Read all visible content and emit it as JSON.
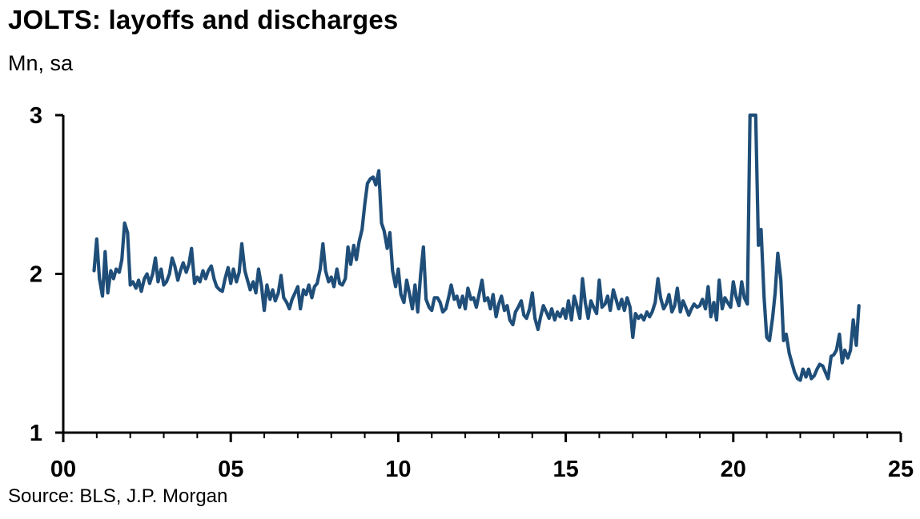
{
  "title": "JOLTS: layoffs and discharges",
  "subtitle": "Mn, sa",
  "source": "Source: BLS, J.P. Morgan",
  "colors": {
    "series": "#1F4E79",
    "axis": "#000000"
  },
  "chart_data": {
    "type": "line",
    "title": "JOLTS: layoffs and discharges",
    "ylabel": "Mn, sa",
    "xlabel": "",
    "xlim": [
      2000,
      2025
    ],
    "ylim": [
      1,
      3
    ],
    "x_ticks": [
      {
        "value": 2000,
        "label": "00"
      },
      {
        "value": 2005,
        "label": "05"
      },
      {
        "value": 2010,
        "label": "10"
      },
      {
        "value": 2015,
        "label": "15"
      },
      {
        "value": 2020,
        "label": "20"
      },
      {
        "value": 2025,
        "label": "25"
      }
    ],
    "y_ticks": [
      {
        "value": 1,
        "label": "1"
      },
      {
        "value": 2,
        "label": "2"
      },
      {
        "value": 3,
        "label": "3"
      }
    ],
    "grid": false,
    "legend": "none",
    "series": [
      {
        "values": [
          [
            2000.92,
            2.02
          ],
          [
            2001.0,
            2.22
          ],
          [
            2001.08,
            1.97
          ],
          [
            2001.17,
            1.86
          ],
          [
            2001.25,
            2.14
          ],
          [
            2001.33,
            1.88
          ],
          [
            2001.42,
            2.02
          ],
          [
            2001.5,
            1.97
          ],
          [
            2001.58,
            2.03
          ],
          [
            2001.67,
            2.01
          ],
          [
            2001.75,
            2.09
          ],
          [
            2001.83,
            2.32
          ],
          [
            2001.92,
            2.26
          ],
          [
            2002.0,
            1.93
          ],
          [
            2002.08,
            1.95
          ],
          [
            2002.17,
            1.91
          ],
          [
            2002.25,
            1.96
          ],
          [
            2002.33,
            1.89
          ],
          [
            2002.42,
            1.97
          ],
          [
            2002.5,
            2.0
          ],
          [
            2002.58,
            1.94
          ],
          [
            2002.67,
            2.0
          ],
          [
            2002.75,
            2.1
          ],
          [
            2002.83,
            1.95
          ],
          [
            2002.92,
            2.03
          ],
          [
            2003.0,
            1.93
          ],
          [
            2003.08,
            1.95
          ],
          [
            2003.17,
            2.0
          ],
          [
            2003.25,
            2.1
          ],
          [
            2003.33,
            2.05
          ],
          [
            2003.42,
            1.96
          ],
          [
            2003.5,
            2.02
          ],
          [
            2003.58,
            2.07
          ],
          [
            2003.67,
            2.01
          ],
          [
            2003.75,
            2.06
          ],
          [
            2003.83,
            2.16
          ],
          [
            2003.92,
            1.94
          ],
          [
            2004.0,
            1.98
          ],
          [
            2004.08,
            1.95
          ],
          [
            2004.17,
            2.02
          ],
          [
            2004.25,
            1.97
          ],
          [
            2004.33,
            2.02
          ],
          [
            2004.42,
            2.05
          ],
          [
            2004.5,
            1.97
          ],
          [
            2004.58,
            1.92
          ],
          [
            2004.67,
            1.9
          ],
          [
            2004.75,
            1.89
          ],
          [
            2004.83,
            1.97
          ],
          [
            2004.92,
            2.04
          ],
          [
            2005.0,
            1.94
          ],
          [
            2005.08,
            2.03
          ],
          [
            2005.17,
            1.95
          ],
          [
            2005.25,
            2.01
          ],
          [
            2005.33,
            2.19
          ],
          [
            2005.42,
            2.02
          ],
          [
            2005.5,
            1.96
          ],
          [
            2005.58,
            1.9
          ],
          [
            2005.67,
            1.95
          ],
          [
            2005.75,
            1.88
          ],
          [
            2005.83,
            2.03
          ],
          [
            2005.92,
            1.92
          ],
          [
            2006.0,
            1.77
          ],
          [
            2006.08,
            1.93
          ],
          [
            2006.17,
            1.84
          ],
          [
            2006.25,
            1.9
          ],
          [
            2006.33,
            1.83
          ],
          [
            2006.42,
            1.88
          ],
          [
            2006.5,
            1.99
          ],
          [
            2006.58,
            1.85
          ],
          [
            2006.67,
            1.82
          ],
          [
            2006.75,
            1.78
          ],
          [
            2006.83,
            1.84
          ],
          [
            2006.92,
            1.88
          ],
          [
            2007.0,
            1.92
          ],
          [
            2007.08,
            1.78
          ],
          [
            2007.17,
            1.9
          ],
          [
            2007.25,
            1.87
          ],
          [
            2007.33,
            1.93
          ],
          [
            2007.42,
            1.85
          ],
          [
            2007.5,
            1.92
          ],
          [
            2007.58,
            1.94
          ],
          [
            2007.67,
            2.03
          ],
          [
            2007.75,
            2.19
          ],
          [
            2007.83,
            2.02
          ],
          [
            2007.92,
            1.95
          ],
          [
            2008.0,
            1.98
          ],
          [
            2008.08,
            1.92
          ],
          [
            2008.17,
            2.03
          ],
          [
            2008.25,
            1.94
          ],
          [
            2008.33,
            1.93
          ],
          [
            2008.42,
            1.97
          ],
          [
            2008.5,
            2.17
          ],
          [
            2008.58,
            2.06
          ],
          [
            2008.67,
            2.18
          ],
          [
            2008.75,
            2.09
          ],
          [
            2008.83,
            2.2
          ],
          [
            2008.92,
            2.28
          ],
          [
            2009.0,
            2.44
          ],
          [
            2009.08,
            2.57
          ],
          [
            2009.17,
            2.6
          ],
          [
            2009.25,
            2.61
          ],
          [
            2009.33,
            2.56
          ],
          [
            2009.42,
            2.65
          ],
          [
            2009.5,
            2.32
          ],
          [
            2009.58,
            2.27
          ],
          [
            2009.67,
            2.16
          ],
          [
            2009.75,
            2.26
          ],
          [
            2009.83,
            2.02
          ],
          [
            2009.92,
            1.92
          ],
          [
            2010.0,
            2.03
          ],
          [
            2010.08,
            1.87
          ],
          [
            2010.17,
            1.82
          ],
          [
            2010.25,
            1.96
          ],
          [
            2010.33,
            1.88
          ],
          [
            2010.42,
            1.78
          ],
          [
            2010.5,
            1.93
          ],
          [
            2010.58,
            1.76
          ],
          [
            2010.67,
            2.0
          ],
          [
            2010.75,
            2.17
          ],
          [
            2010.83,
            1.84
          ],
          [
            2010.92,
            1.79
          ],
          [
            2011.0,
            1.77
          ],
          [
            2011.08,
            1.85
          ],
          [
            2011.17,
            1.85
          ],
          [
            2011.25,
            1.82
          ],
          [
            2011.33,
            1.76
          ],
          [
            2011.42,
            1.78
          ],
          [
            2011.5,
            1.85
          ],
          [
            2011.58,
            1.93
          ],
          [
            2011.67,
            1.84
          ],
          [
            2011.75,
            1.86
          ],
          [
            2011.83,
            1.79
          ],
          [
            2011.92,
            1.86
          ],
          [
            2012.0,
            1.78
          ],
          [
            2012.08,
            1.91
          ],
          [
            2012.17,
            1.84
          ],
          [
            2012.25,
            1.85
          ],
          [
            2012.33,
            1.79
          ],
          [
            2012.42,
            1.88
          ],
          [
            2012.5,
            1.96
          ],
          [
            2012.58,
            1.83
          ],
          [
            2012.67,
            1.85
          ],
          [
            2012.75,
            1.78
          ],
          [
            2012.83,
            1.87
          ],
          [
            2012.92,
            1.73
          ],
          [
            2013.0,
            1.81
          ],
          [
            2013.08,
            1.86
          ],
          [
            2013.17,
            1.77
          ],
          [
            2013.25,
            1.8
          ],
          [
            2013.33,
            1.71
          ],
          [
            2013.42,
            1.68
          ],
          [
            2013.5,
            1.76
          ],
          [
            2013.58,
            1.79
          ],
          [
            2013.67,
            1.83
          ],
          [
            2013.75,
            1.74
          ],
          [
            2013.83,
            1.72
          ],
          [
            2013.92,
            1.78
          ],
          [
            2014.0,
            1.88
          ],
          [
            2014.08,
            1.72
          ],
          [
            2014.17,
            1.65
          ],
          [
            2014.25,
            1.73
          ],
          [
            2014.33,
            1.8
          ],
          [
            2014.42,
            1.76
          ],
          [
            2014.5,
            1.72
          ],
          [
            2014.58,
            1.78
          ],
          [
            2014.67,
            1.71
          ],
          [
            2014.75,
            1.76
          ],
          [
            2014.83,
            1.73
          ],
          [
            2014.92,
            1.78
          ],
          [
            2015.0,
            1.72
          ],
          [
            2015.08,
            1.83
          ],
          [
            2015.17,
            1.71
          ],
          [
            2015.25,
            1.86
          ],
          [
            2015.33,
            1.8
          ],
          [
            2015.42,
            1.72
          ],
          [
            2015.5,
            1.97
          ],
          [
            2015.58,
            1.82
          ],
          [
            2015.67,
            1.72
          ],
          [
            2015.75,
            1.83
          ],
          [
            2015.83,
            1.79
          ],
          [
            2015.92,
            1.75
          ],
          [
            2016.0,
            1.96
          ],
          [
            2016.08,
            1.79
          ],
          [
            2016.17,
            1.81
          ],
          [
            2016.25,
            1.86
          ],
          [
            2016.33,
            1.77
          ],
          [
            2016.42,
            1.9
          ],
          [
            2016.5,
            1.84
          ],
          [
            2016.58,
            1.78
          ],
          [
            2016.67,
            1.84
          ],
          [
            2016.75,
            1.77
          ],
          [
            2016.83,
            1.85
          ],
          [
            2016.92,
            1.79
          ],
          [
            2017.0,
            1.6
          ],
          [
            2017.08,
            1.75
          ],
          [
            2017.17,
            1.72
          ],
          [
            2017.25,
            1.74
          ],
          [
            2017.33,
            1.71
          ],
          [
            2017.42,
            1.76
          ],
          [
            2017.5,
            1.73
          ],
          [
            2017.58,
            1.76
          ],
          [
            2017.67,
            1.82
          ],
          [
            2017.75,
            1.97
          ],
          [
            2017.83,
            1.85
          ],
          [
            2017.92,
            1.78
          ],
          [
            2018.0,
            1.81
          ],
          [
            2018.08,
            1.87
          ],
          [
            2018.17,
            1.76
          ],
          [
            2018.25,
            1.8
          ],
          [
            2018.33,
            1.91
          ],
          [
            2018.42,
            1.76
          ],
          [
            2018.5,
            1.83
          ],
          [
            2018.58,
            1.79
          ],
          [
            2018.67,
            1.74
          ],
          [
            2018.75,
            1.78
          ],
          [
            2018.83,
            1.81
          ],
          [
            2018.92,
            1.79
          ],
          [
            2019.0,
            1.8
          ],
          [
            2019.08,
            1.84
          ],
          [
            2019.17,
            1.78
          ],
          [
            2019.25,
            1.92
          ],
          [
            2019.33,
            1.73
          ],
          [
            2019.42,
            1.82
          ],
          [
            2019.5,
            1.71
          ],
          [
            2019.58,
            1.96
          ],
          [
            2019.67,
            1.78
          ],
          [
            2019.75,
            1.85
          ],
          [
            2019.83,
            1.82
          ],
          [
            2019.92,
            1.79
          ],
          [
            2020.0,
            1.95
          ],
          [
            2020.08,
            1.86
          ],
          [
            2020.17,
            1.8
          ],
          [
            2020.25,
            1.95
          ],
          [
            2020.33,
            1.85
          ],
          [
            2020.42,
            1.81
          ],
          [
            2020.5,
            3.0
          ],
          [
            2020.67,
            3.0
          ],
          [
            2020.75,
            2.18
          ],
          [
            2020.83,
            2.28
          ],
          [
            2020.92,
            1.85
          ],
          [
            2021.0,
            1.6
          ],
          [
            2021.08,
            1.58
          ],
          [
            2021.17,
            1.72
          ],
          [
            2021.25,
            1.88
          ],
          [
            2021.33,
            2.13
          ],
          [
            2021.42,
            1.96
          ],
          [
            2021.5,
            1.58
          ],
          [
            2021.58,
            1.62
          ],
          [
            2021.67,
            1.5
          ],
          [
            2021.75,
            1.44
          ],
          [
            2021.83,
            1.38
          ],
          [
            2021.92,
            1.34
          ],
          [
            2022.0,
            1.33
          ],
          [
            2022.08,
            1.4
          ],
          [
            2022.17,
            1.35
          ],
          [
            2022.25,
            1.4
          ],
          [
            2022.33,
            1.34
          ],
          [
            2022.42,
            1.36
          ],
          [
            2022.5,
            1.4
          ],
          [
            2022.58,
            1.43
          ],
          [
            2022.67,
            1.42
          ],
          [
            2022.75,
            1.38
          ],
          [
            2022.83,
            1.34
          ],
          [
            2022.92,
            1.48
          ],
          [
            2023.0,
            1.49
          ],
          [
            2023.08,
            1.52
          ],
          [
            2023.17,
            1.62
          ],
          [
            2023.25,
            1.44
          ],
          [
            2023.33,
            1.52
          ],
          [
            2023.42,
            1.47
          ],
          [
            2023.5,
            1.52
          ],
          [
            2023.58,
            1.71
          ],
          [
            2023.67,
            1.55
          ],
          [
            2023.75,
            1.8
          ]
        ]
      }
    ]
  }
}
